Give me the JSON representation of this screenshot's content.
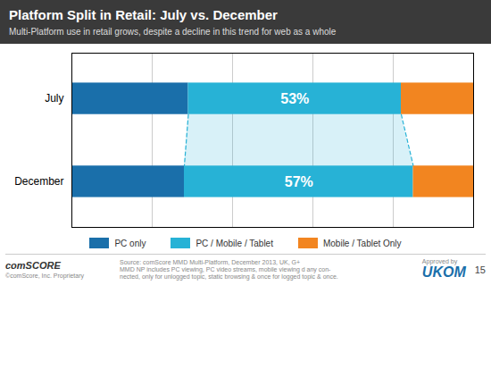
{
  "chart_data": {
    "type": "bar",
    "orientation": "horizontal",
    "stacked": true,
    "title": "Platform Split in Retail: July vs. December",
    "subtitle": "Multi-Platform use in retail grows, despite a decline in this trend for web as a whole",
    "categories": [
      "July",
      "December"
    ],
    "series": [
      {
        "name": "PC only",
        "color": "#1A6FAA",
        "values": [
          29,
          28
        ]
      },
      {
        "name": "PC / Mobile / Tablet",
        "color": "#27B2D6",
        "values": [
          53,
          57
        ],
        "value_labels": [
          "53%",
          "57%"
        ]
      },
      {
        "name": "Mobile / Tablet Only",
        "color": "#F28520",
        "values": [
          18,
          15
        ]
      }
    ],
    "xlim": [
      0,
      100
    ],
    "xticks": [
      20,
      40,
      60,
      80
    ],
    "grid": true,
    "tick_labels": "y",
    "data_labels": true,
    "legend": "bottom",
    "annotations": [
      "comSCORE",
      "©comScore, Inc.   Proprietary",
      "Source: comScore MMD Multi-Platform, December 2013, UK, G+",
      "MMD NP includes PC viewing, PC video streams, mobile viewing d any con-",
      "nected, only for unlogged topic, static browsing & once for logged topic & once.",
      "Approved by",
      "UKOM",
      "15"
    ]
  }
}
